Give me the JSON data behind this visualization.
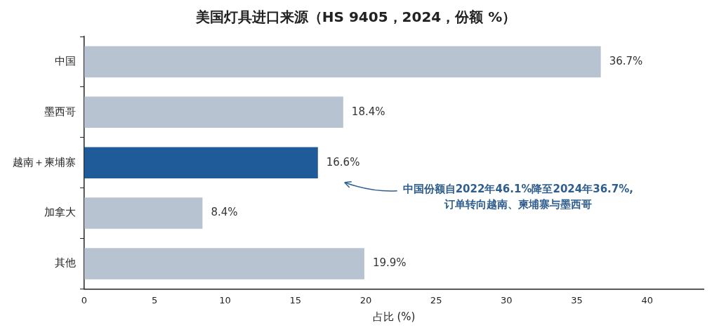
{
  "chart_data": {
    "type": "bar",
    "orientation": "horizontal",
    "title": "美国灯具进口来源（HS 9405，2024，份额 %）",
    "xlabel": "占比 (%)",
    "categories": [
      "中国",
      "墨西哥",
      "越南＋柬埔寨",
      "加拿大",
      "其他"
    ],
    "values": [
      36.7,
      18.4,
      16.6,
      8.4,
      19.9
    ],
    "colors": [
      "#b8c3d1",
      "#b8c3d1",
      "#1f5a99",
      "#b8c3d1",
      "#b8c3d1"
    ],
    "value_labels": [
      "36.7%",
      "18.4%",
      "16.6%",
      "8.4%",
      "19.9%"
    ],
    "xlim": [
      0,
      44
    ],
    "xticks": [
      0,
      5,
      10,
      15,
      20,
      25,
      30,
      35,
      40
    ],
    "grid": false,
    "legend": false,
    "annotations": [
      "中国份额自2022年46.1%降至2024年36.7%,\n订单转向越南、柬埔寨与墨西哥"
    ]
  }
}
